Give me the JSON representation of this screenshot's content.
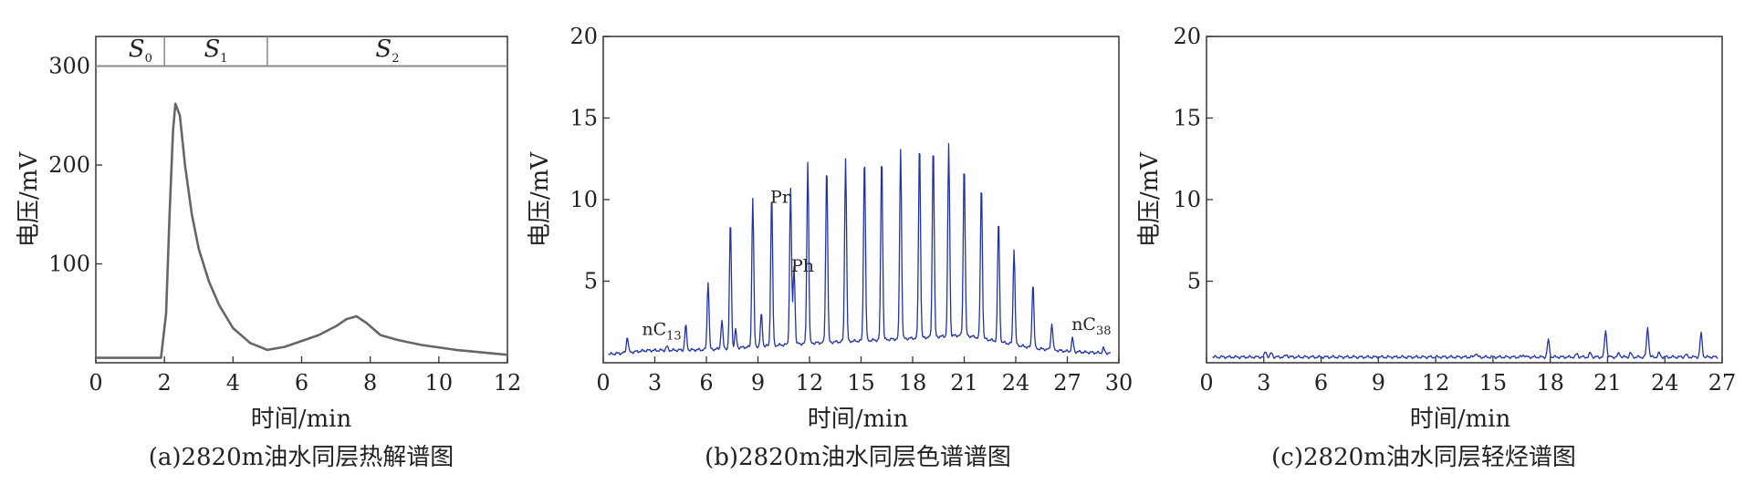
{
  "figure": {
    "captions": [
      "(a)2820m油水同层热解谱图",
      "(b)2820m油水同层色谱谱图",
      "(c)2820m油水同层轻烃谱图"
    ]
  },
  "chart_data": [
    {
      "type": "line",
      "caption": "(a)2820m油水同层热解谱图",
      "xlabel": "时间/min",
      "ylabel": "电压/mV",
      "xlim": [
        0,
        12
      ],
      "ylim": [
        0,
        330
      ],
      "xticks": [
        "0",
        "2",
        "4",
        "6",
        "8",
        "10",
        "12"
      ],
      "yticks": [
        "100",
        "200",
        "300"
      ],
      "grid": false,
      "line_color": "#666666",
      "series": [
        {
          "x": [
            0,
            1,
            1.9,
            2.05,
            2.15,
            2.25,
            2.32,
            2.45,
            2.6,
            2.8,
            3.0,
            3.3,
            3.6,
            4.0,
            4.5,
            5.0,
            5.5,
            6.0,
            6.5,
            7.0,
            7.3,
            7.6,
            7.9,
            8.3,
            8.8,
            9.5,
            10.5,
            12
          ],
          "values": [
            5,
            5,
            5,
            50,
            150,
            235,
            262,
            250,
            200,
            150,
            115,
            82,
            58,
            35,
            20,
            13,
            16,
            22,
            28,
            37,
            44,
            47,
            40,
            28,
            23,
            18,
            13,
            8
          ]
        }
      ],
      "stage_band": {
        "y_top": 330,
        "y_bottom": 300,
        "dividers_x": [
          2,
          5
        ],
        "labels": [
          {
            "main": "S",
            "sub": "0",
            "x": 1.3
          },
          {
            "main": "S",
            "sub": "1",
            "x": 3.5
          },
          {
            "main": "S",
            "sub": "2",
            "x": 8.5
          }
        ]
      }
    },
    {
      "type": "line",
      "caption": "(b)2820m油水同层色谱谱图",
      "xlabel": "时间/min",
      "ylabel": "电压/mV",
      "xlim": [
        0,
        30
      ],
      "ylim": [
        0,
        20
      ],
      "xticks": [
        "0",
        "3",
        "6",
        "9",
        "12",
        "15",
        "18",
        "21",
        "24",
        "27",
        "30"
      ],
      "yticks": [
        "5",
        "10",
        "15",
        "20"
      ],
      "grid": false,
      "line_color": "#2233aa",
      "baseline": [
        [
          0,
          0.5
        ],
        [
          1.2,
          0.6
        ],
        [
          2.5,
          0.75
        ],
        [
          6,
          0.8
        ],
        [
          9,
          1.0
        ],
        [
          12,
          1.2
        ],
        [
          15,
          1.35
        ],
        [
          18,
          1.5
        ],
        [
          21,
          1.7
        ],
        [
          23,
          1.3
        ],
        [
          25,
          0.9
        ],
        [
          27,
          0.7
        ],
        [
          29,
          0.6
        ],
        [
          29.5,
          0.6
        ]
      ],
      "peaks": [
        [
          1.4,
          1.6
        ],
        [
          3.7,
          1.0
        ],
        [
          4.8,
          2.3
        ],
        [
          6.1,
          5.0
        ],
        [
          6.9,
          2.6
        ],
        [
          7.4,
          8.7
        ],
        [
          7.7,
          2.0
        ],
        [
          8.7,
          10.1
        ],
        [
          9.2,
          3.0
        ],
        [
          9.8,
          10.4
        ],
        [
          10.9,
          10.7
        ],
        [
          11.1,
          5.9
        ],
        [
          11.9,
          12.3
        ],
        [
          13.0,
          12.2
        ],
        [
          14.1,
          12.6
        ],
        [
          15.2,
          12.7
        ],
        [
          16.2,
          12.8
        ],
        [
          17.3,
          13.1
        ],
        [
          18.4,
          13.6
        ],
        [
          19.2,
          13.5
        ],
        [
          20.1,
          13.4
        ],
        [
          21.0,
          12.3
        ],
        [
          22.0,
          11.0
        ],
        [
          23.0,
          8.8
        ],
        [
          23.9,
          7.0
        ],
        [
          25.0,
          4.9
        ],
        [
          26.1,
          2.4
        ],
        [
          27.3,
          1.5
        ],
        [
          29.1,
          0.9
        ]
      ],
      "annotations": [
        {
          "text": "nC",
          "sub": "13",
          "x": 3.4,
          "y": 1.7
        },
        {
          "text": "Pr",
          "x": 10.3,
          "y": 9.8
        },
        {
          "text": "Ph",
          "x": 11.6,
          "y": 5.6
        },
        {
          "text": "nC",
          "sub": "38",
          "x": 28.4,
          "y": 2.0
        }
      ]
    },
    {
      "type": "line",
      "caption": "(c)2820m油水同层轻烃谱图",
      "xlabel": "时间/min",
      "ylabel": "电压/mV",
      "xlim": [
        0,
        27
      ],
      "ylim": [
        0,
        20
      ],
      "xticks": [
        "0",
        "3",
        "6",
        "9",
        "12",
        "15",
        "18",
        "21",
        "24",
        "27"
      ],
      "yticks": [
        "5",
        "10",
        "15",
        "20"
      ],
      "grid": false,
      "line_color": "#2233aa",
      "baseline": [
        [
          0,
          0.35
        ],
        [
          27,
          0.35
        ]
      ],
      "peaks": [
        [
          3.1,
          0.7
        ],
        [
          3.4,
          0.6
        ],
        [
          4.2,
          0.5
        ],
        [
          14.1,
          0.6
        ],
        [
          16.6,
          0.5
        ],
        [
          17.9,
          1.4
        ],
        [
          19.4,
          0.55
        ],
        [
          20.1,
          0.6
        ],
        [
          20.9,
          2.0
        ],
        [
          21.6,
          0.6
        ],
        [
          22.2,
          0.6
        ],
        [
          23.1,
          2.2
        ],
        [
          23.7,
          0.6
        ],
        [
          25.1,
          0.5
        ],
        [
          25.9,
          1.8
        ]
      ]
    }
  ]
}
